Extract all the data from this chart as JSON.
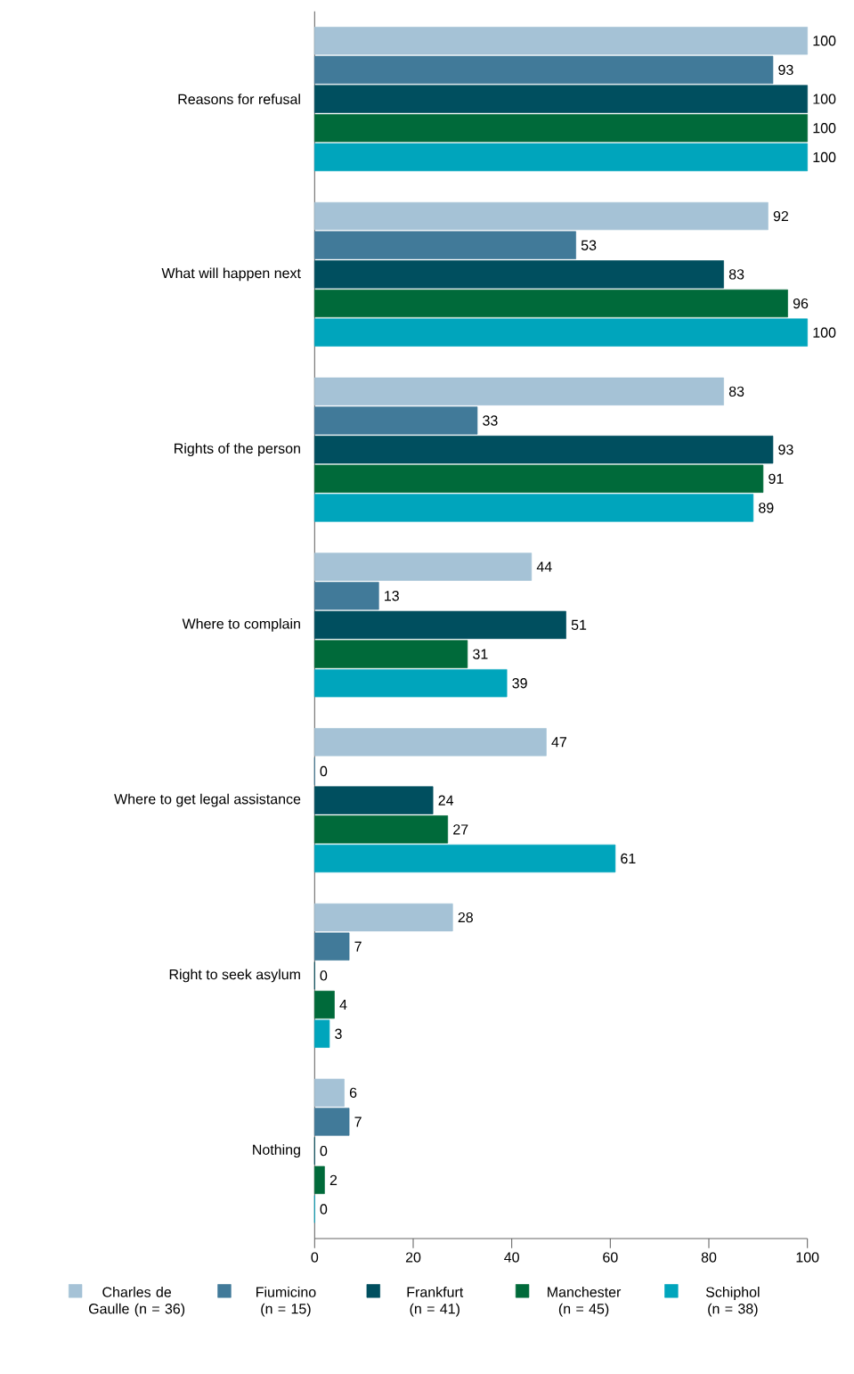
{
  "chart_data": {
    "type": "bar",
    "orientation": "horizontal",
    "categories": [
      "Reasons for refusal",
      "What will happen next",
      "Rights of the person",
      "Where to complain",
      "Where to get legal assistance",
      "Right to seek asylum",
      "Nothing"
    ],
    "series": [
      {
        "name": "Charles de Gaulle (n = 36)",
        "color": "#a5c2d6",
        "values": [
          100,
          92,
          83,
          44,
          47,
          28,
          6
        ]
      },
      {
        "name": "Fiumicino (n = 15)",
        "color": "#417a99",
        "values": [
          93,
          53,
          33,
          13,
          0,
          7,
          7
        ]
      },
      {
        "name": "Frankfurt (n = 41)",
        "color": "#004f5f",
        "values": [
          100,
          83,
          93,
          51,
          24,
          0,
          0
        ]
      },
      {
        "name": "Manchester (n = 45)",
        "color": "#006a3a",
        "values": [
          100,
          96,
          91,
          31,
          27,
          4,
          2
        ]
      },
      {
        "name": "Schiphol (n = 38)",
        "color": "#00a5bc",
        "values": [
          100,
          100,
          89,
          39,
          61,
          3,
          0
        ]
      }
    ],
    "xlim": [
      0,
      100
    ],
    "xticks": [
      0,
      20,
      40,
      60,
      80,
      100
    ],
    "data_labels": true,
    "legend": "bottom",
    "grid": false
  }
}
